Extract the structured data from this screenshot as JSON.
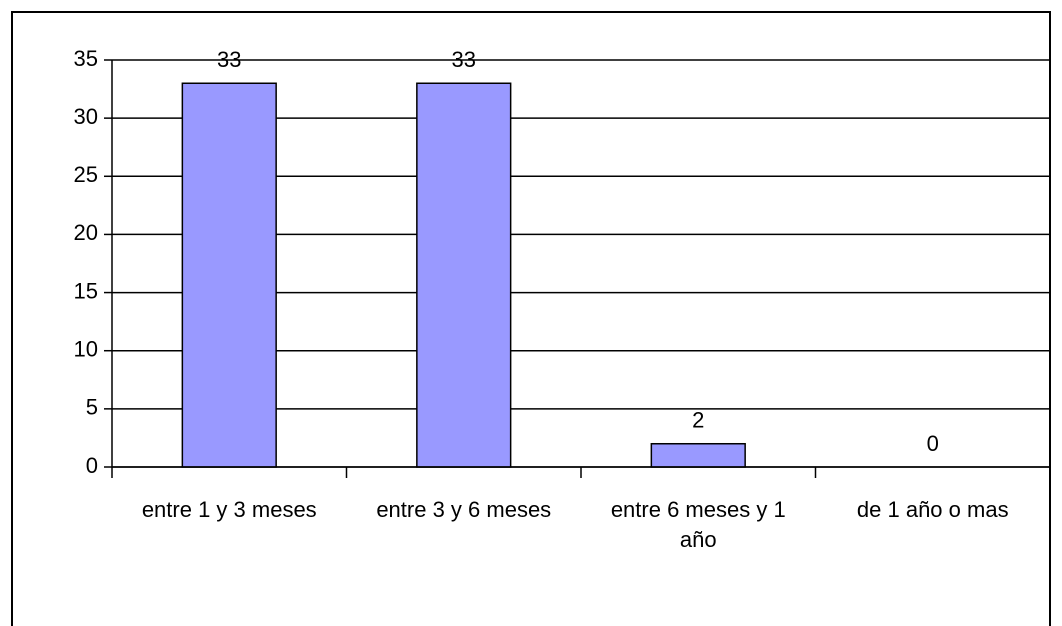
{
  "chart_data": {
    "type": "bar",
    "categories": [
      "entre 1 y 3 meses",
      "entre 3 y 6 meses",
      "entre 6 meses y 1 año",
      "de 1 año o mas"
    ],
    "values": [
      33,
      33,
      2,
      0
    ],
    "color": "#9999ff",
    "ylim": [
      0,
      35
    ],
    "yticks": [
      0,
      5,
      10,
      15,
      20,
      25,
      30,
      35
    ],
    "grid": true
  }
}
